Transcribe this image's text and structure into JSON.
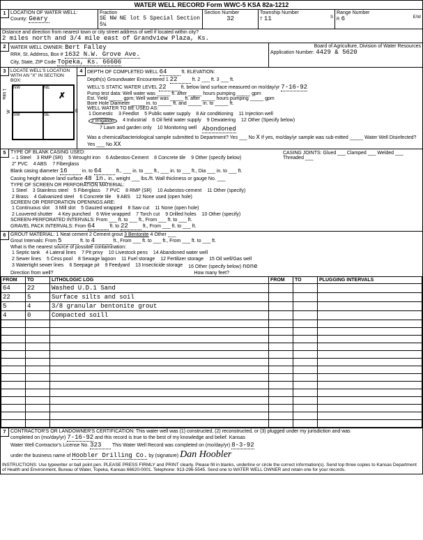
{
  "form_header": "WATER WELL RECORD    Form WWC-5    KSA 82a-1212",
  "sec1": {
    "title": "LOCATION OF WATER WELL:",
    "county_label": "County:",
    "county": "Geary",
    "fraction_label": "Fraction",
    "fraction": "SE  NW  NE\nlot 5 Special Section 5¼",
    "section_label": "Section Number",
    "section": "32",
    "township_label": "Township Number",
    "township": "11",
    "township_dir": "S",
    "range_label": "Range Number",
    "range": "6",
    "range_dir": "E/W",
    "dist_label": "Distance and direction from nearest town or city street address of well if located within city?",
    "dist": "2 miles north and 3/4 mile east of Grandview Plaza, Ks."
  },
  "sec2": {
    "title": "WATER WELL OWNER:",
    "owner": "Bert Falley",
    "addr_label": "RR#, St. Address, Box #",
    "addr": "1632 N.W. Grove Ave.",
    "city_label": "City, State, ZIP Code",
    "city": "Topeka, Ks. 66606",
    "board": "Board of Agriculture, Division of Water Resources",
    "app_label": "Application Number:",
    "app": "4429 & 5620"
  },
  "sec3": {
    "title": "LOCATE WELL'S LOCATION WITH AN \"X\" IN SECTION BOX:",
    "mile": "1 Mile"
  },
  "sec4": {
    "title": "DEPTH OF COMPLETED WELL",
    "depth": "64",
    "elev": "ft. ELEVATION:",
    "gw_label": "Depth(s) Groundwater Encountered",
    "gw1": "22",
    "swl_label": "WELL'S STATIC WATER LEVEL",
    "swl": "22",
    "swl_rest": "ft. below land surface measured on mo/day/yr",
    "swl_date": "7-16-92",
    "pump": "Pump test data:  Well water was _____ ft. after _____ hours pumping _____ gpm",
    "est": "Est. Yield _____ gpm; Well water was _____ ft. after _____ hours pumping _____ gpm",
    "bore": "Bore Hole Diameter _____ in. to _____ ft. and _____ in. to _____ ft.",
    "use_label": "WELL WATER TO BE USED AS:",
    "uses": [
      "1 Domestic",
      "2 Irrigation",
      "3 Feedlot",
      "4 Industrial",
      "5 Public water supply",
      "6 Oil field water supply",
      "7 Lawn and garden only",
      "8 Air conditioning",
      "9 Dewatering",
      "10 Monitoring well",
      "11 Injection well",
      "12 Other (Specify below)"
    ],
    "use_other": "Abondoned",
    "bact": "Was a chemical/bacteriological sample submitted to Department? Yes ___ No",
    "bact_val": "X",
    "bact2": "If yes, mo/day/yr sample was sub-mitted _____  Water Well Disinfected? Yes ___ No",
    "bact2_val": "XX"
  },
  "sec5": {
    "title": "TYPE OF BLANK CASING USED:",
    "types": [
      "– 1 Steel",
      "2\" PVC",
      "3 RMP (SR)",
      "4 ABS",
      "5 Wrought iron",
      "6 Asbestos-Cement",
      "7 Fiberglass",
      "8 Concrete tile",
      "9 Other (specify below)"
    ],
    "joints": "CASING JOINTS: Glued ___ Clamped ___ Welded ___ Threaded ___",
    "dia_label": "Blank casing diameter",
    "dia": "16",
    "dia_to": "64",
    "height_label": "Casing height above land surface",
    "height": "48 in.",
    "screen_title": "TYPE OF SCREEN OR PERFORATION MATERIAL:",
    "screens": [
      "1 Steel",
      "2 Brass",
      "3 Stainless steel",
      "4 Galvanized steel",
      "5 Fiberglass",
      "6 Concrete tile",
      "7 PVC",
      "8 RMP (SR)",
      "9 ABS",
      "10 Asbestos-cement",
      "11 Other (specify) ___",
      "12 None used (open hole)"
    ],
    "open_title": "SCREEN OR PERFORATION OPENINGS ARE:",
    "opens": [
      "1 Continuous slot",
      "2 Louvered shutter",
      "3 Mill slot",
      "4 Key punched",
      "5 Gauzed wrapped",
      "6 Wire wrapped",
      "7 Torch cut",
      "8 Saw cut",
      "9 Drilled holes",
      "10 Other (specify)",
      "11 None (open hole)"
    ],
    "intervals": "SCREEN-PERFORATED INTERVALS:   From ___ ft. to ___ ft., From ___ ft. to ___ ft.",
    "gravel": "GRAVEL PACK INTERVALS:",
    "gravel_from": "64",
    "gravel_to": "22"
  },
  "sec6": {
    "title": "GROUT MATERIAL:",
    "types": [
      "1 Neat cement",
      "2 Cement grout",
      "3 Bentonite",
      "4 Other ___"
    ],
    "grout_label": "Grout Intervals:   From",
    "from": "5",
    "to": "4",
    "contam": "What is the nearest source of possible contamination:",
    "sources": [
      "1 Septic tank",
      "2 Sewer lines",
      "3 Watertight sewer lines",
      "4 Lateral lines",
      "5 Cess pool",
      "6 Seepage pit",
      "7 Pit privy",
      "8 Sewage lagoon",
      "9 Feedyard",
      "10 Livestock pens",
      "11 Fuel storage",
      "12 Fertilizer storage",
      "13 Insecticide storage",
      "14 Abandoned water well",
      "15 Oil well/Gas well",
      "16 Other (specify below)"
    ],
    "other": "none",
    "dir": "Direction from well?",
    "feet": "How many feet?",
    "cols": [
      "FROM",
      "TO",
      "LITHOLOGIC LOG",
      "FROM",
      "TO",
      "PLUGGING INTERVALS"
    ],
    "rows": [
      [
        "64",
        "22",
        "Washed U.D.1 Sand",
        "",
        "",
        ""
      ],
      [
        "22",
        "5",
        "Surface silts and soil",
        "",
        "",
        ""
      ],
      [
        "5",
        "4",
        "3/8 granular bentonite grout",
        "",
        "",
        ""
      ],
      [
        "4",
        "0",
        "Compacted soill",
        "",
        "",
        ""
      ]
    ]
  },
  "sec7": {
    "title": "CONTRACTOR'S OR LANDOWNER'S CERTIFICATION:",
    "cert": "This water well was (1) constructed, (2) reconstructed, or (3) plugged under my jurisdiction and was",
    "completed_label": "completed on (mo/day/yr)",
    "completed": "7-16-92",
    "cert2": "and this record is true to the best of my knowledge and belief. Kansas",
    "lic_label": "Water Well Contractor's License No.",
    "lic": "323",
    "rec_label": "This Water Well Record was completed on (mo/day/yr)",
    "rec": "8-3-92",
    "bus_label": "under the business name of",
    "bus": "Hoobler Drilling Co.",
    "sig_label": "by (signature)",
    "sig": "Dan Hoobler"
  },
  "instructions": "INSTRUCTIONS: Use typewriter or ball point pen. PLEASE PRESS FIRMLY and PRINT clearly. Please fill in blanks, underline or circle the correct information(s). Send top three copies to Kansas Department of Health and Environment, Bureau of Water, Topeka, Kansas 66620-0001. Telephone: 913-296-5545. Send one to WATER WELL OWNER and retain one for your records."
}
